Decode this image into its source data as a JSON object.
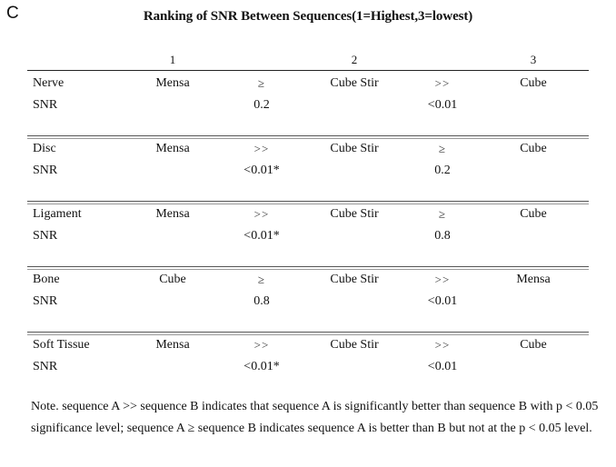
{
  "panel_letter": "C",
  "title": "Ranking of SNR Between Sequences(1=Highest,3=lowest)",
  "rank_headers": [
    "1",
    "2",
    "3"
  ],
  "rows": [
    {
      "tissue": "Nerve",
      "metric": "SNR",
      "seq1": "Mensa",
      "rel1": "≥",
      "p1": "0.2",
      "seq2": "Cube Stir",
      "rel2": ">>",
      "p2": "<0.01",
      "seq3": "Cube"
    },
    {
      "tissue": "Disc",
      "metric": "SNR",
      "seq1": "Mensa",
      "rel1": ">>",
      "p1": "<0.01*",
      "seq2": "Cube Stir",
      "rel2": "≥",
      "p2": "0.2",
      "seq3": "Cube"
    },
    {
      "tissue": "Ligament",
      "metric": "SNR",
      "seq1": "Mensa",
      "rel1": ">>",
      "p1": "<0.01*",
      "seq2": "Cube Stir",
      "rel2": "≥",
      "p2": "0.8",
      "seq3": "Cube"
    },
    {
      "tissue": "Bone",
      "metric": "SNR",
      "seq1": "Cube",
      "rel1": "≥",
      "p1": "0.8",
      "seq2": "Cube Stir",
      "rel2": ">>",
      "p2": "<0.01",
      "seq3": "Mensa"
    },
    {
      "tissue": "Soft Tissue",
      "metric": "SNR",
      "seq1": "Mensa",
      "rel1": ">>",
      "p1": "<0.01*",
      "seq2": "Cube Stir",
      "rel2": ">>",
      "p2": "<0.01",
      "seq3": "Cube"
    }
  ],
  "note": "Note. sequence A >> sequence B indicates that sequence A is significantly better than sequence B with p < 0.05 significance level; sequence A ≥ sequence B indicates sequence A is better than B but not at the p < 0.05 level."
}
